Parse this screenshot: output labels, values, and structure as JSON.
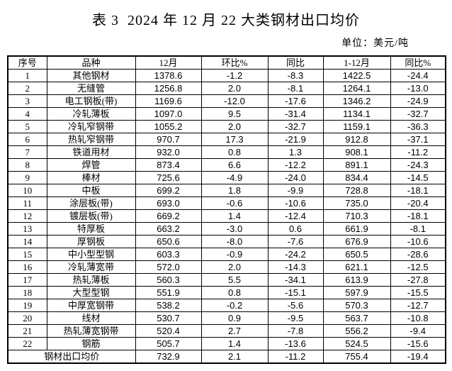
{
  "page": {
    "title": "表 3  2024 年 12 月 22 大类钢材出口均价",
    "unit_label": "单位：美元/吨"
  },
  "table": {
    "columns": [
      "序号",
      "品种",
      "12月",
      "环比%",
      "同比",
      "1-12月",
      "同比%"
    ],
    "rows": [
      {
        "no": "1",
        "name": "其他钢材",
        "dec": "1378.6",
        "mom": "-1.2",
        "yoy": "-8.3",
        "jan_dec": "1422.5",
        "yoy_pct": "-24.4"
      },
      {
        "no": "2",
        "name": "无缝管",
        "dec": "1256.8",
        "mom": "2.0",
        "yoy": "-8.1",
        "jan_dec": "1264.1",
        "yoy_pct": "-13.0"
      },
      {
        "no": "3",
        "name": "电工钢板(带)",
        "dec": "1169.6",
        "mom": "-12.0",
        "yoy": "-17.6",
        "jan_dec": "1346.2",
        "yoy_pct": "-24.9"
      },
      {
        "no": "4",
        "name": "冷轧薄板",
        "dec": "1097.0",
        "mom": "9.5",
        "yoy": "-31.4",
        "jan_dec": "1134.1",
        "yoy_pct": "-32.7"
      },
      {
        "no": "5",
        "name": "冷轧窄钢带",
        "dec": "1055.2",
        "mom": "2.0",
        "yoy": "-32.7",
        "jan_dec": "1159.1",
        "yoy_pct": "-36.3"
      },
      {
        "no": "6",
        "name": "热轧窄钢带",
        "dec": "970.7",
        "mom": "17.3",
        "yoy": "-21.9",
        "jan_dec": "912.8",
        "yoy_pct": "-37.1"
      },
      {
        "no": "7",
        "name": "铁道用材",
        "dec": "932.0",
        "mom": "0.8",
        "yoy": "1.3",
        "jan_dec": "908.1",
        "yoy_pct": "-11.2"
      },
      {
        "no": "8",
        "name": "焊管",
        "dec": "873.4",
        "mom": "6.6",
        "yoy": "-12.2",
        "jan_dec": "891.1",
        "yoy_pct": "-24.3"
      },
      {
        "no": "9",
        "name": "棒材",
        "dec": "725.6",
        "mom": "-4.9",
        "yoy": "-24.0",
        "jan_dec": "834.4",
        "yoy_pct": "-14.5"
      },
      {
        "no": "10",
        "name": "中板",
        "dec": "699.2",
        "mom": "1.8",
        "yoy": "-9.9",
        "jan_dec": "728.8",
        "yoy_pct": "-18.1"
      },
      {
        "no": "11",
        "name": "涂层板(带)",
        "dec": "693.0",
        "mom": "-0.6",
        "yoy": "-10.6",
        "jan_dec": "735.0",
        "yoy_pct": "-20.4"
      },
      {
        "no": "12",
        "name": "镀层板(带)",
        "dec": "669.2",
        "mom": "1.4",
        "yoy": "-12.4",
        "jan_dec": "710.3",
        "yoy_pct": "-18.1"
      },
      {
        "no": "13",
        "name": "特厚板",
        "dec": "663.2",
        "mom": "-3.0",
        "yoy": "0.6",
        "jan_dec": "661.9",
        "yoy_pct": "-8.1"
      },
      {
        "no": "14",
        "name": "厚钢板",
        "dec": "650.6",
        "mom": "-8.0",
        "yoy": "-7.6",
        "jan_dec": "676.9",
        "yoy_pct": "-10.6"
      },
      {
        "no": "15",
        "name": "中小型型钢",
        "dec": "603.3",
        "mom": "-0.9",
        "yoy": "-24.2",
        "jan_dec": "650.5",
        "yoy_pct": "-28.6"
      },
      {
        "no": "16",
        "name": "冷轧薄宽带",
        "dec": "572.0",
        "mom": "2.0",
        "yoy": "-14.3",
        "jan_dec": "621.1",
        "yoy_pct": "-12.5"
      },
      {
        "no": "17",
        "name": "热轧薄板",
        "dec": "560.3",
        "mom": "5.5",
        "yoy": "-34.1",
        "jan_dec": "613.9",
        "yoy_pct": "-27.8"
      },
      {
        "no": "18",
        "name": "大型型钢",
        "dec": "551.9",
        "mom": "0.8",
        "yoy": "-15.1",
        "jan_dec": "597.9",
        "yoy_pct": "-15.5"
      },
      {
        "no": "19",
        "name": "中厚宽钢带",
        "dec": "538.2",
        "mom": "-0.2",
        "yoy": "-5.6",
        "jan_dec": "570.3",
        "yoy_pct": "-12.7"
      },
      {
        "no": "20",
        "name": "线材",
        "dec": "530.7",
        "mom": "0.9",
        "yoy": "-9.5",
        "jan_dec": "563.7",
        "yoy_pct": "-10.8"
      },
      {
        "no": "21",
        "name": "热轧薄宽钢带",
        "dec": "520.4",
        "mom": "2.7",
        "yoy": "-7.8",
        "jan_dec": "556.2",
        "yoy_pct": "-9.4"
      },
      {
        "no": "22",
        "name": "钢筋",
        "dec": "505.7",
        "mom": "1.4",
        "yoy": "-13.6",
        "jan_dec": "524.5",
        "yoy_pct": "-15.6"
      }
    ],
    "total_row": {
      "label": "钢材出口均价",
      "dec": "732.9",
      "mom": "2.1",
      "yoy": "-11.2",
      "jan_dec": "755.4",
      "yoy_pct": "-19.4"
    }
  }
}
